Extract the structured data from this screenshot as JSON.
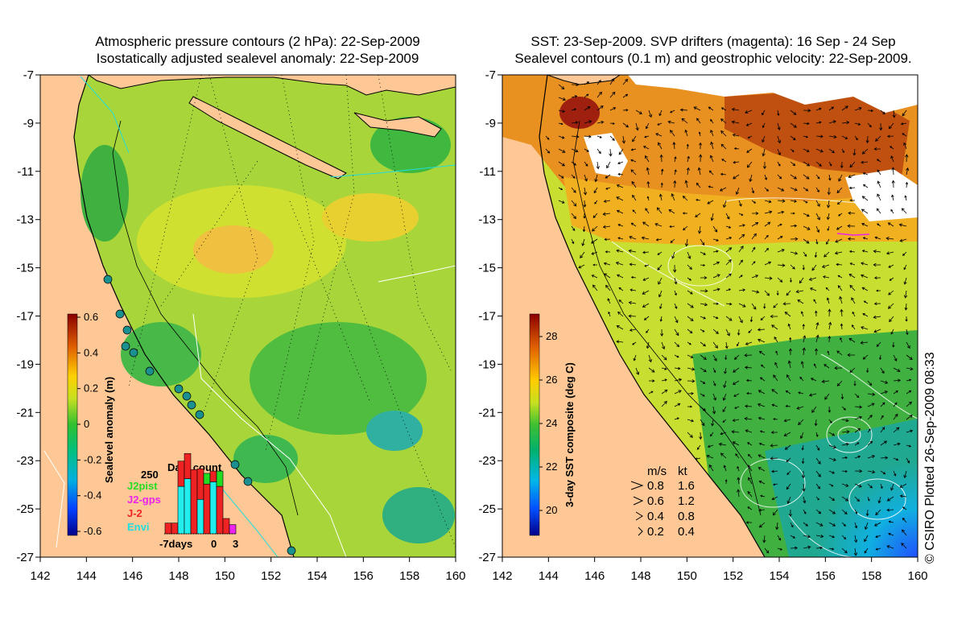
{
  "left_panel": {
    "title_line1": "Atmospheric pressure contours (2 hPa): 22-Sep-2009",
    "title_line2": "Isostatically adjusted sealevel anomaly: 22-Sep-2009",
    "x_ticks": [
      "142",
      "144",
      "146",
      "148",
      "150",
      "152",
      "154",
      "156",
      "158",
      "160"
    ],
    "y_ticks": [
      "-7",
      "-9",
      "-11",
      "-13",
      "-15",
      "-17",
      "-19",
      "-21",
      "-23",
      "-25",
      "-27"
    ],
    "colorbar": {
      "label": "Sealevel anomaly (m)",
      "ticks": [
        "0.6",
        "0.4",
        "0.2",
        "0",
        "-0.2",
        "-0.4",
        "-0.6"
      ]
    },
    "data_count": {
      "title": "Data count",
      "max_label": "250",
      "legend": [
        {
          "name": "J2pist",
          "color": "#22dd22"
        },
        {
          "name": "J2-gps",
          "color": "#ee22ee"
        },
        {
          "name": "J-2",
          "color": "#ee2222"
        },
        {
          "name": "Envi",
          "color": "#22dddd"
        }
      ],
      "axis_labels": [
        "-7days",
        "0",
        "3"
      ],
      "bars": [
        {
          "cyan": 0.0,
          "red": 0.14,
          "green": 0.0,
          "magenta": 0.0
        },
        {
          "cyan": 0.0,
          "red": 0.14,
          "green": 0.0,
          "magenta": 0.0
        },
        {
          "cyan": 0.62,
          "red": 0.33,
          "green": 0.0,
          "magenta": 0.0
        },
        {
          "cyan": 0.72,
          "red": 0.33,
          "green": 0.0,
          "magenta": 0.0
        },
        {
          "cyan": 0.0,
          "red": 0.84,
          "green": 0.0,
          "magenta": 0.0
        },
        {
          "cyan": 0.45,
          "red": 0.4,
          "green": 0.0,
          "magenta": 0.0
        },
        {
          "cyan": 0.0,
          "red": 0.65,
          "green": 0.14,
          "magenta": 0.0
        },
        {
          "cyan": 0.68,
          "red": 0.14,
          "green": 0.0,
          "magenta": 0.0
        },
        {
          "cyan": 0.0,
          "red": 0.62,
          "green": 0.2,
          "magenta": 0.0
        },
        {
          "cyan": 0.0,
          "red": 0.2,
          "green": 0.0,
          "magenta": 0.0
        },
        {
          "cyan": 0.0,
          "red": 0.0,
          "green": 0.0,
          "magenta": 0.12
        }
      ]
    }
  },
  "right_panel": {
    "title_line1": "SST: 23-Sep-2009. SVP drifters (magenta): 16 Sep - 24 Sep",
    "title_line2": "Sealevel contours (0.1 m) and geostrophic velocity: 22-Sep-2009.",
    "x_ticks": [
      "142",
      "144",
      "146",
      "148",
      "150",
      "152",
      "154",
      "156",
      "158",
      "160"
    ],
    "y_ticks": [
      "-7",
      "-9",
      "-11",
      "-13",
      "-15",
      "-17",
      "-19",
      "-21",
      "-23",
      "-25",
      "-27"
    ],
    "colorbar": {
      "label": "3-day SST composite (deg C)",
      "ticks": [
        "28",
        "26",
        "24",
        "22",
        "20"
      ]
    },
    "velocity_legend": {
      "header_ms": "m/s",
      "header_kt": "kt",
      "rows": [
        {
          "ms": "0.8",
          "kt": "1.6"
        },
        {
          "ms": "0.6",
          "kt": "1.2"
        },
        {
          "ms": "0.4",
          "kt": "0.8"
        },
        {
          "ms": "0.2",
          "kt": "0.4"
        }
      ]
    }
  },
  "credit": "© CSIRO Plotted 26-Sep-2009 08:33",
  "colors": {
    "land": "#fdc895",
    "sla_field": "#a8d63a",
    "coastline": "#000000",
    "isobath": "#22dddd"
  }
}
